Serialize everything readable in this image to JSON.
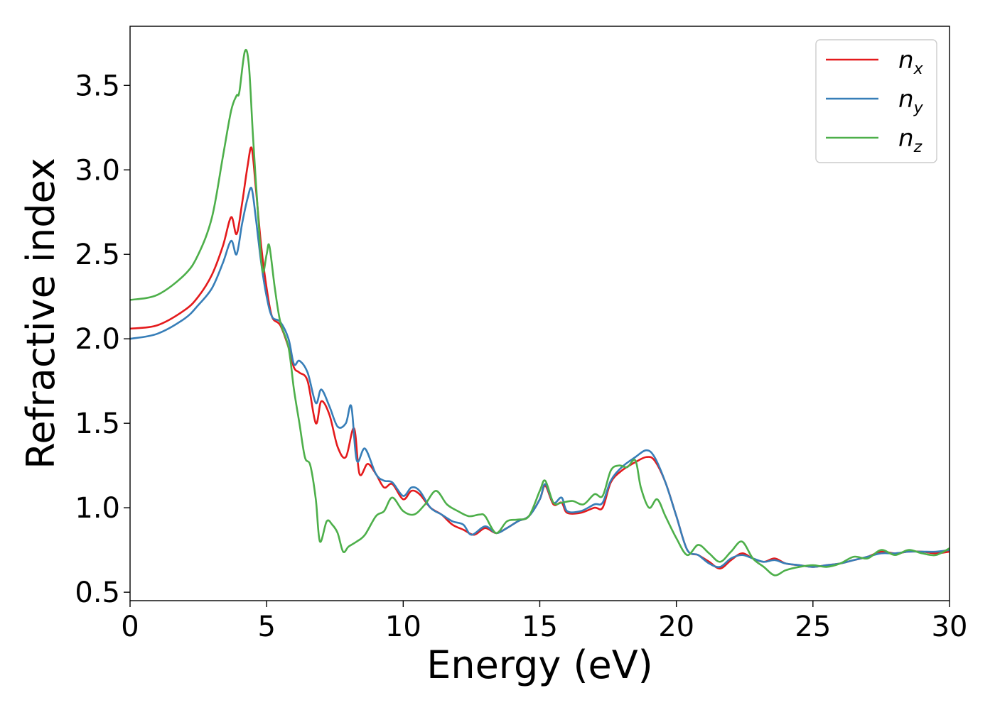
{
  "chart_data": {
    "type": "line",
    "xlabel": "Energy (eV)",
    "ylabel": "Refractive index",
    "xlim": [
      0,
      30
    ],
    "ylim": [
      0.45,
      3.85
    ],
    "xticks": [
      0,
      5,
      10,
      15,
      20,
      25,
      30
    ],
    "xtick_labels": [
      "0",
      "5",
      "10",
      "15",
      "20",
      "25",
      "30"
    ],
    "yticks": [
      0.5,
      1.0,
      1.5,
      2.0,
      2.5,
      3.0,
      3.5
    ],
    "ytick_labels": [
      "0.5",
      "1.0",
      "1.5",
      "2.0",
      "2.5",
      "3.0",
      "3.5"
    ],
    "grid": false,
    "legend_position": "top-right",
    "series": [
      {
        "name": "n_x",
        "legend_base": "n",
        "legend_sub": "x",
        "color": "#e41a1c",
        "points": [
          [
            0,
            2.06
          ],
          [
            1,
            2.08
          ],
          [
            2,
            2.17
          ],
          [
            2.5,
            2.25
          ],
          [
            3,
            2.38
          ],
          [
            3.4,
            2.55
          ],
          [
            3.7,
            2.72
          ],
          [
            3.9,
            2.62
          ],
          [
            4.1,
            2.8
          ],
          [
            4.3,
            3.02
          ],
          [
            4.45,
            3.13
          ],
          [
            4.6,
            2.9
          ],
          [
            4.8,
            2.55
          ],
          [
            5.0,
            2.3
          ],
          [
            5.2,
            2.13
          ],
          [
            5.5,
            2.08
          ],
          [
            5.8,
            1.95
          ],
          [
            6.0,
            1.83
          ],
          [
            6.2,
            1.8
          ],
          [
            6.5,
            1.75
          ],
          [
            6.8,
            1.5
          ],
          [
            7.0,
            1.63
          ],
          [
            7.3,
            1.55
          ],
          [
            7.6,
            1.36
          ],
          [
            7.9,
            1.3
          ],
          [
            8.2,
            1.47
          ],
          [
            8.4,
            1.2
          ],
          [
            8.7,
            1.26
          ],
          [
            9.0,
            1.2
          ],
          [
            9.3,
            1.12
          ],
          [
            9.6,
            1.14
          ],
          [
            10.0,
            1.05
          ],
          [
            10.3,
            1.1
          ],
          [
            10.6,
            1.08
          ],
          [
            11.0,
            1.0
          ],
          [
            11.4,
            0.96
          ],
          [
            11.8,
            0.9
          ],
          [
            12.2,
            0.87
          ],
          [
            12.6,
            0.84
          ],
          [
            13.0,
            0.88
          ],
          [
            13.4,
            0.85
          ],
          [
            13.8,
            0.88
          ],
          [
            14.2,
            0.92
          ],
          [
            14.6,
            0.95
          ],
          [
            15.0,
            1.05
          ],
          [
            15.2,
            1.13
          ],
          [
            15.5,
            1.02
          ],
          [
            15.8,
            1.03
          ],
          [
            16.0,
            0.97
          ],
          [
            16.5,
            0.97
          ],
          [
            17.0,
            1.0
          ],
          [
            17.3,
            1.0
          ],
          [
            17.6,
            1.15
          ],
          [
            18.0,
            1.22
          ],
          [
            18.5,
            1.27
          ],
          [
            18.9,
            1.3
          ],
          [
            19.2,
            1.28
          ],
          [
            19.6,
            1.15
          ],
          [
            20.0,
            0.95
          ],
          [
            20.4,
            0.75
          ],
          [
            20.8,
            0.72
          ],
          [
            21.2,
            0.68
          ],
          [
            21.6,
            0.64
          ],
          [
            22.0,
            0.69
          ],
          [
            22.4,
            0.73
          ],
          [
            22.8,
            0.7
          ],
          [
            23.2,
            0.68
          ],
          [
            23.6,
            0.7
          ],
          [
            24.0,
            0.67
          ],
          [
            24.5,
            0.66
          ],
          [
            25.0,
            0.65
          ],
          [
            25.5,
            0.66
          ],
          [
            26.0,
            0.67
          ],
          [
            26.5,
            0.69
          ],
          [
            27.0,
            0.71
          ],
          [
            27.5,
            0.74
          ],
          [
            28.0,
            0.73
          ],
          [
            28.5,
            0.74
          ],
          [
            29.0,
            0.74
          ],
          [
            29.5,
            0.73
          ],
          [
            30,
            0.74
          ]
        ]
      },
      {
        "name": "n_y",
        "legend_base": "n",
        "legend_sub": "y",
        "color": "#377eb8",
        "points": [
          [
            0,
            2.0
          ],
          [
            1,
            2.03
          ],
          [
            2,
            2.12
          ],
          [
            2.5,
            2.2
          ],
          [
            3,
            2.3
          ],
          [
            3.4,
            2.45
          ],
          [
            3.7,
            2.58
          ],
          [
            3.9,
            2.5
          ],
          [
            4.1,
            2.68
          ],
          [
            4.3,
            2.83
          ],
          [
            4.45,
            2.89
          ],
          [
            4.6,
            2.72
          ],
          [
            4.8,
            2.45
          ],
          [
            5.0,
            2.25
          ],
          [
            5.2,
            2.13
          ],
          [
            5.5,
            2.1
          ],
          [
            5.8,
            2.0
          ],
          [
            6.0,
            1.85
          ],
          [
            6.2,
            1.87
          ],
          [
            6.5,
            1.8
          ],
          [
            6.8,
            1.62
          ],
          [
            7.0,
            1.7
          ],
          [
            7.3,
            1.6
          ],
          [
            7.6,
            1.48
          ],
          [
            7.9,
            1.5
          ],
          [
            8.1,
            1.6
          ],
          [
            8.3,
            1.28
          ],
          [
            8.6,
            1.35
          ],
          [
            9.0,
            1.2
          ],
          [
            9.3,
            1.16
          ],
          [
            9.6,
            1.15
          ],
          [
            10.0,
            1.07
          ],
          [
            10.3,
            1.12
          ],
          [
            10.6,
            1.1
          ],
          [
            11.0,
            1.0
          ],
          [
            11.4,
            0.96
          ],
          [
            11.8,
            0.92
          ],
          [
            12.2,
            0.9
          ],
          [
            12.5,
            0.84
          ],
          [
            13.0,
            0.89
          ],
          [
            13.4,
            0.85
          ],
          [
            13.8,
            0.88
          ],
          [
            14.2,
            0.92
          ],
          [
            14.6,
            0.95
          ],
          [
            15.0,
            1.05
          ],
          [
            15.2,
            1.14
          ],
          [
            15.5,
            1.03
          ],
          [
            15.8,
            1.06
          ],
          [
            16.0,
            0.98
          ],
          [
            16.5,
            0.98
          ],
          [
            17.0,
            1.02
          ],
          [
            17.3,
            1.03
          ],
          [
            17.6,
            1.16
          ],
          [
            18.0,
            1.24
          ],
          [
            18.5,
            1.3
          ],
          [
            18.9,
            1.34
          ],
          [
            19.2,
            1.3
          ],
          [
            19.6,
            1.15
          ],
          [
            20.0,
            0.95
          ],
          [
            20.4,
            0.75
          ],
          [
            20.8,
            0.72
          ],
          [
            21.2,
            0.67
          ],
          [
            21.6,
            0.65
          ],
          [
            22.0,
            0.7
          ],
          [
            22.4,
            0.72
          ],
          [
            22.8,
            0.7
          ],
          [
            23.2,
            0.68
          ],
          [
            23.6,
            0.69
          ],
          [
            24.0,
            0.67
          ],
          [
            24.5,
            0.66
          ],
          [
            25.0,
            0.65
          ],
          [
            25.5,
            0.66
          ],
          [
            26.0,
            0.67
          ],
          [
            26.5,
            0.69
          ],
          [
            27.0,
            0.71
          ],
          [
            27.5,
            0.73
          ],
          [
            28.0,
            0.73
          ],
          [
            28.5,
            0.74
          ],
          [
            29.0,
            0.74
          ],
          [
            29.5,
            0.74
          ],
          [
            30,
            0.75
          ]
        ]
      },
      {
        "name": "n_z",
        "legend_base": "n",
        "legend_sub": "z",
        "color": "#4daf4a",
        "points": [
          [
            0,
            2.23
          ],
          [
            1,
            2.26
          ],
          [
            2,
            2.38
          ],
          [
            2.5,
            2.5
          ],
          [
            3,
            2.72
          ],
          [
            3.4,
            3.08
          ],
          [
            3.7,
            3.35
          ],
          [
            3.9,
            3.44
          ],
          [
            4.0,
            3.46
          ],
          [
            4.2,
            3.7
          ],
          [
            4.35,
            3.62
          ],
          [
            4.5,
            3.2
          ],
          [
            4.7,
            2.7
          ],
          [
            4.85,
            2.4
          ],
          [
            5.0,
            2.5
          ],
          [
            5.1,
            2.55
          ],
          [
            5.3,
            2.3
          ],
          [
            5.5,
            2.1
          ],
          [
            5.8,
            1.95
          ],
          [
            6.0,
            1.7
          ],
          [
            6.2,
            1.5
          ],
          [
            6.4,
            1.3
          ],
          [
            6.6,
            1.25
          ],
          [
            6.8,
            1.05
          ],
          [
            6.95,
            0.8
          ],
          [
            7.2,
            0.92
          ],
          [
            7.4,
            0.9
          ],
          [
            7.6,
            0.85
          ],
          [
            7.8,
            0.74
          ],
          [
            8.0,
            0.77
          ],
          [
            8.3,
            0.8
          ],
          [
            8.6,
            0.84
          ],
          [
            9.0,
            0.95
          ],
          [
            9.3,
            0.98
          ],
          [
            9.6,
            1.06
          ],
          [
            10.0,
            0.98
          ],
          [
            10.4,
            0.96
          ],
          [
            10.8,
            1.02
          ],
          [
            11.2,
            1.1
          ],
          [
            11.6,
            1.02
          ],
          [
            12.0,
            0.98
          ],
          [
            12.4,
            0.95
          ],
          [
            12.8,
            0.96
          ],
          [
            13.0,
            0.95
          ],
          [
            13.4,
            0.85
          ],
          [
            13.8,
            0.92
          ],
          [
            14.2,
            0.93
          ],
          [
            14.6,
            0.95
          ],
          [
            15.0,
            1.1
          ],
          [
            15.2,
            1.16
          ],
          [
            15.5,
            1.03
          ],
          [
            15.8,
            1.03
          ],
          [
            16.2,
            1.04
          ],
          [
            16.6,
            1.02
          ],
          [
            17.0,
            1.08
          ],
          [
            17.3,
            1.07
          ],
          [
            17.6,
            1.22
          ],
          [
            17.9,
            1.25
          ],
          [
            18.2,
            1.24
          ],
          [
            18.5,
            1.28
          ],
          [
            18.7,
            1.12
          ],
          [
            19.0,
            1.0
          ],
          [
            19.3,
            1.05
          ],
          [
            19.6,
            0.95
          ],
          [
            20.0,
            0.82
          ],
          [
            20.4,
            0.72
          ],
          [
            20.8,
            0.78
          ],
          [
            21.2,
            0.73
          ],
          [
            21.6,
            0.68
          ],
          [
            22.0,
            0.74
          ],
          [
            22.4,
            0.8
          ],
          [
            22.8,
            0.7
          ],
          [
            23.2,
            0.65
          ],
          [
            23.6,
            0.6
          ],
          [
            24.0,
            0.63
          ],
          [
            24.5,
            0.65
          ],
          [
            25.0,
            0.66
          ],
          [
            25.5,
            0.65
          ],
          [
            26.0,
            0.67
          ],
          [
            26.5,
            0.71
          ],
          [
            27.0,
            0.7
          ],
          [
            27.5,
            0.75
          ],
          [
            28.0,
            0.72
          ],
          [
            28.5,
            0.75
          ],
          [
            29.0,
            0.73
          ],
          [
            29.5,
            0.72
          ],
          [
            30,
            0.76
          ]
        ]
      }
    ]
  }
}
